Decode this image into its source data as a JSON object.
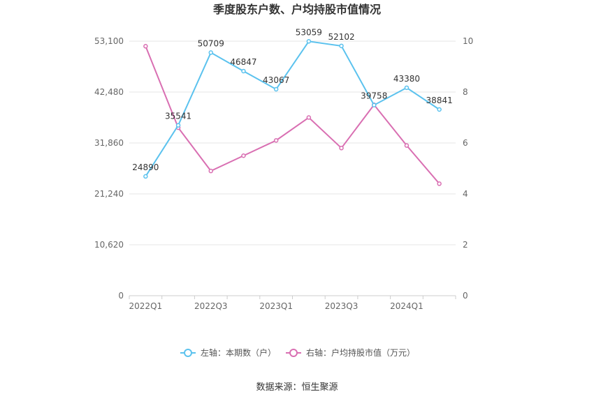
{
  "source_label": "数据来源：恒生聚源",
  "chart_data": {
    "type": "line",
    "title": "季度股东户数、户均持股市值情况",
    "categories": [
      "2022Q1",
      "2022Q2",
      "2022Q3",
      "2022Q4",
      "2023Q1",
      "2023Q2",
      "2023Q3",
      "2023Q4",
      "2024Q1",
      "2024Q2"
    ],
    "x_tick_labels": [
      "2022Q1",
      "2022Q3",
      "2023Q1",
      "2023Q3",
      "2024Q1"
    ],
    "y_left": {
      "ticks": [
        0,
        10620,
        21240,
        31860,
        42480,
        53100
      ],
      "tick_labels": [
        "0",
        "10,620",
        "21,240",
        "31,860",
        "42,480",
        "53,100"
      ],
      "ylim": [
        0,
        53100
      ]
    },
    "y_right": {
      "ticks": [
        0,
        2,
        4,
        6,
        8,
        10
      ],
      "tick_labels": [
        "0",
        "2",
        "4",
        "6",
        "8",
        "10"
      ],
      "ylim": [
        0,
        10
      ]
    },
    "grid": true,
    "legend_position": "bottom",
    "series": [
      {
        "name": "左轴：本期数（户）",
        "axis": "left",
        "color": "#5bc2ee",
        "values": [
          24890,
          35541,
          50709,
          46847,
          43067,
          53059,
          52102,
          39758,
          43380,
          38841
        ],
        "data_labels": [
          "24890",
          "35541",
          "50709",
          "46847",
          "43067",
          "53059",
          "52102",
          "39758",
          "43380",
          "38841"
        ]
      },
      {
        "name": "右轴：户均持股市值（万元）",
        "axis": "right",
        "color": "#d96fb2",
        "values": [
          9.8,
          6.6,
          4.9,
          5.5,
          6.1,
          7.0,
          5.8,
          7.5,
          5.9,
          4.4
        ]
      }
    ]
  }
}
